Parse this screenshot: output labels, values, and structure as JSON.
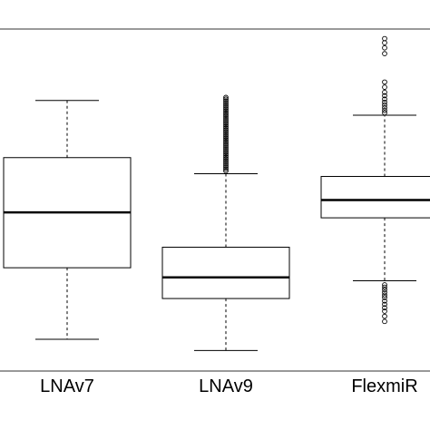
{
  "chart_data": {
    "type": "box",
    "title": "",
    "xlabel": "",
    "ylabel": "",
    "ylim": [
      0,
      10
    ],
    "categories": [
      "LNAv7",
      "LNAv9",
      "FlexmiR"
    ],
    "boxes": [
      {
        "name": "LNAv7",
        "whisker_low": 0.93,
        "q1": 3.02,
        "median": 4.64,
        "q3": 6.24,
        "whisker_high": 7.91,
        "outliers_low": [],
        "outliers_high": []
      },
      {
        "name": "LNAv9",
        "whisker_low": 0.6,
        "q1": 2.12,
        "median": 2.74,
        "q3": 3.62,
        "whisker_high": 5.77,
        "outliers_low": [],
        "outliers_high": [
          5.85,
          5.9,
          5.95,
          6.0,
          6.05,
          6.1,
          6.15,
          6.2,
          6.25,
          6.3,
          6.35,
          6.4,
          6.45,
          6.5,
          6.55,
          6.6,
          6.65,
          6.7,
          6.75,
          6.8,
          6.85,
          6.9,
          6.95,
          7.0,
          7.05,
          7.1,
          7.15,
          7.2,
          7.25,
          7.3,
          7.35,
          7.4,
          7.45,
          7.5,
          7.55,
          7.6,
          7.65,
          7.7,
          7.75,
          7.8,
          7.85,
          7.9,
          7.95,
          8.0
        ]
      },
      {
        "name": "FlexmiR",
        "whisker_low": 2.64,
        "q1": 4.48,
        "median": 5.0,
        "q3": 5.69,
        "whisker_high": 7.48,
        "outliers_low": [
          1.45,
          1.6,
          1.75,
          1.85,
          1.95,
          2.05,
          2.15,
          2.22,
          2.3,
          2.38,
          2.45,
          2.52
        ],
        "outliers_high": [
          7.55,
          7.62,
          7.7,
          7.78,
          7.86,
          7.95,
          8.05,
          8.15,
          8.3,
          8.45,
          9.28,
          9.45,
          9.6,
          9.72
        ]
      }
    ],
    "grid": false,
    "legend": "none"
  }
}
